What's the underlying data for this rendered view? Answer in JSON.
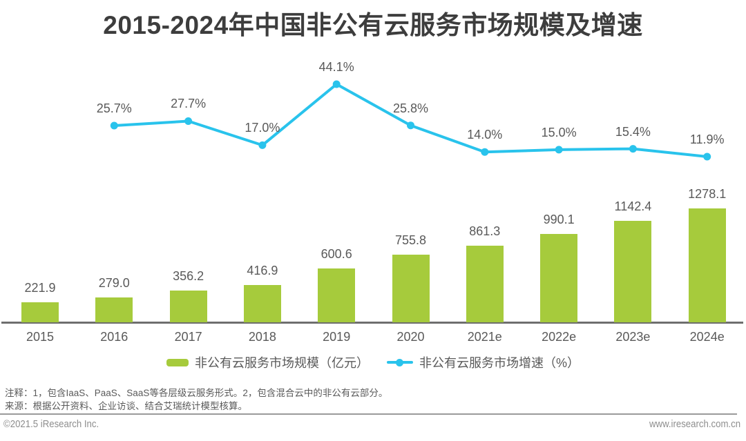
{
  "title": "2015-2024年中国非公有云服务市场规模及增速",
  "chart_data": {
    "type": "bar",
    "title": "2015-2024年中国非公有云服务市场规模及增速",
    "categories": [
      "2015",
      "2016",
      "2017",
      "2018",
      "2019",
      "2020",
      "2021e",
      "2022e",
      "2023e",
      "2024e"
    ],
    "series": [
      {
        "name": "非公有云服务市场规模（亿元）",
        "type": "bar",
        "color": "#a6cb3c",
        "values": [
          221.9,
          279.0,
          356.2,
          416.9,
          600.6,
          755.8,
          861.3,
          990.1,
          1142.4,
          1278.1
        ]
      },
      {
        "name": "非公有云服务市场增速（%）",
        "type": "line",
        "color": "#29c3ec",
        "values": [
          null,
          25.7,
          27.7,
          17.0,
          44.1,
          25.8,
          14.0,
          15.0,
          15.4,
          11.9
        ]
      }
    ],
    "xlabel": "",
    "ylabel": "",
    "grid": false,
    "legend_position": "bottom",
    "value_labels_shown": true,
    "line_value_suffix": "%"
  },
  "legend": {
    "bar_label": "非公有云服务市场规模（亿元）",
    "line_label": "非公有云服务市场增速（%）"
  },
  "notes": {
    "annotation": "注释：1，包含IaaS、PaaS、SaaS等各层级云服务形式。2，包含混合云中的非公有云部分。",
    "source": "来源：根据公开资料、企业访谈、结合艾瑞统计模型核算。"
  },
  "footer": {
    "copyright": "©2021.5 iResearch Inc.",
    "website": "www.iresearch.com.cn"
  },
  "colors": {
    "bar": "#a6cb3c",
    "line": "#29c3ec",
    "label_gray": "#595959",
    "title": "#3d3d3d",
    "axis": "#6e6e6e"
  }
}
